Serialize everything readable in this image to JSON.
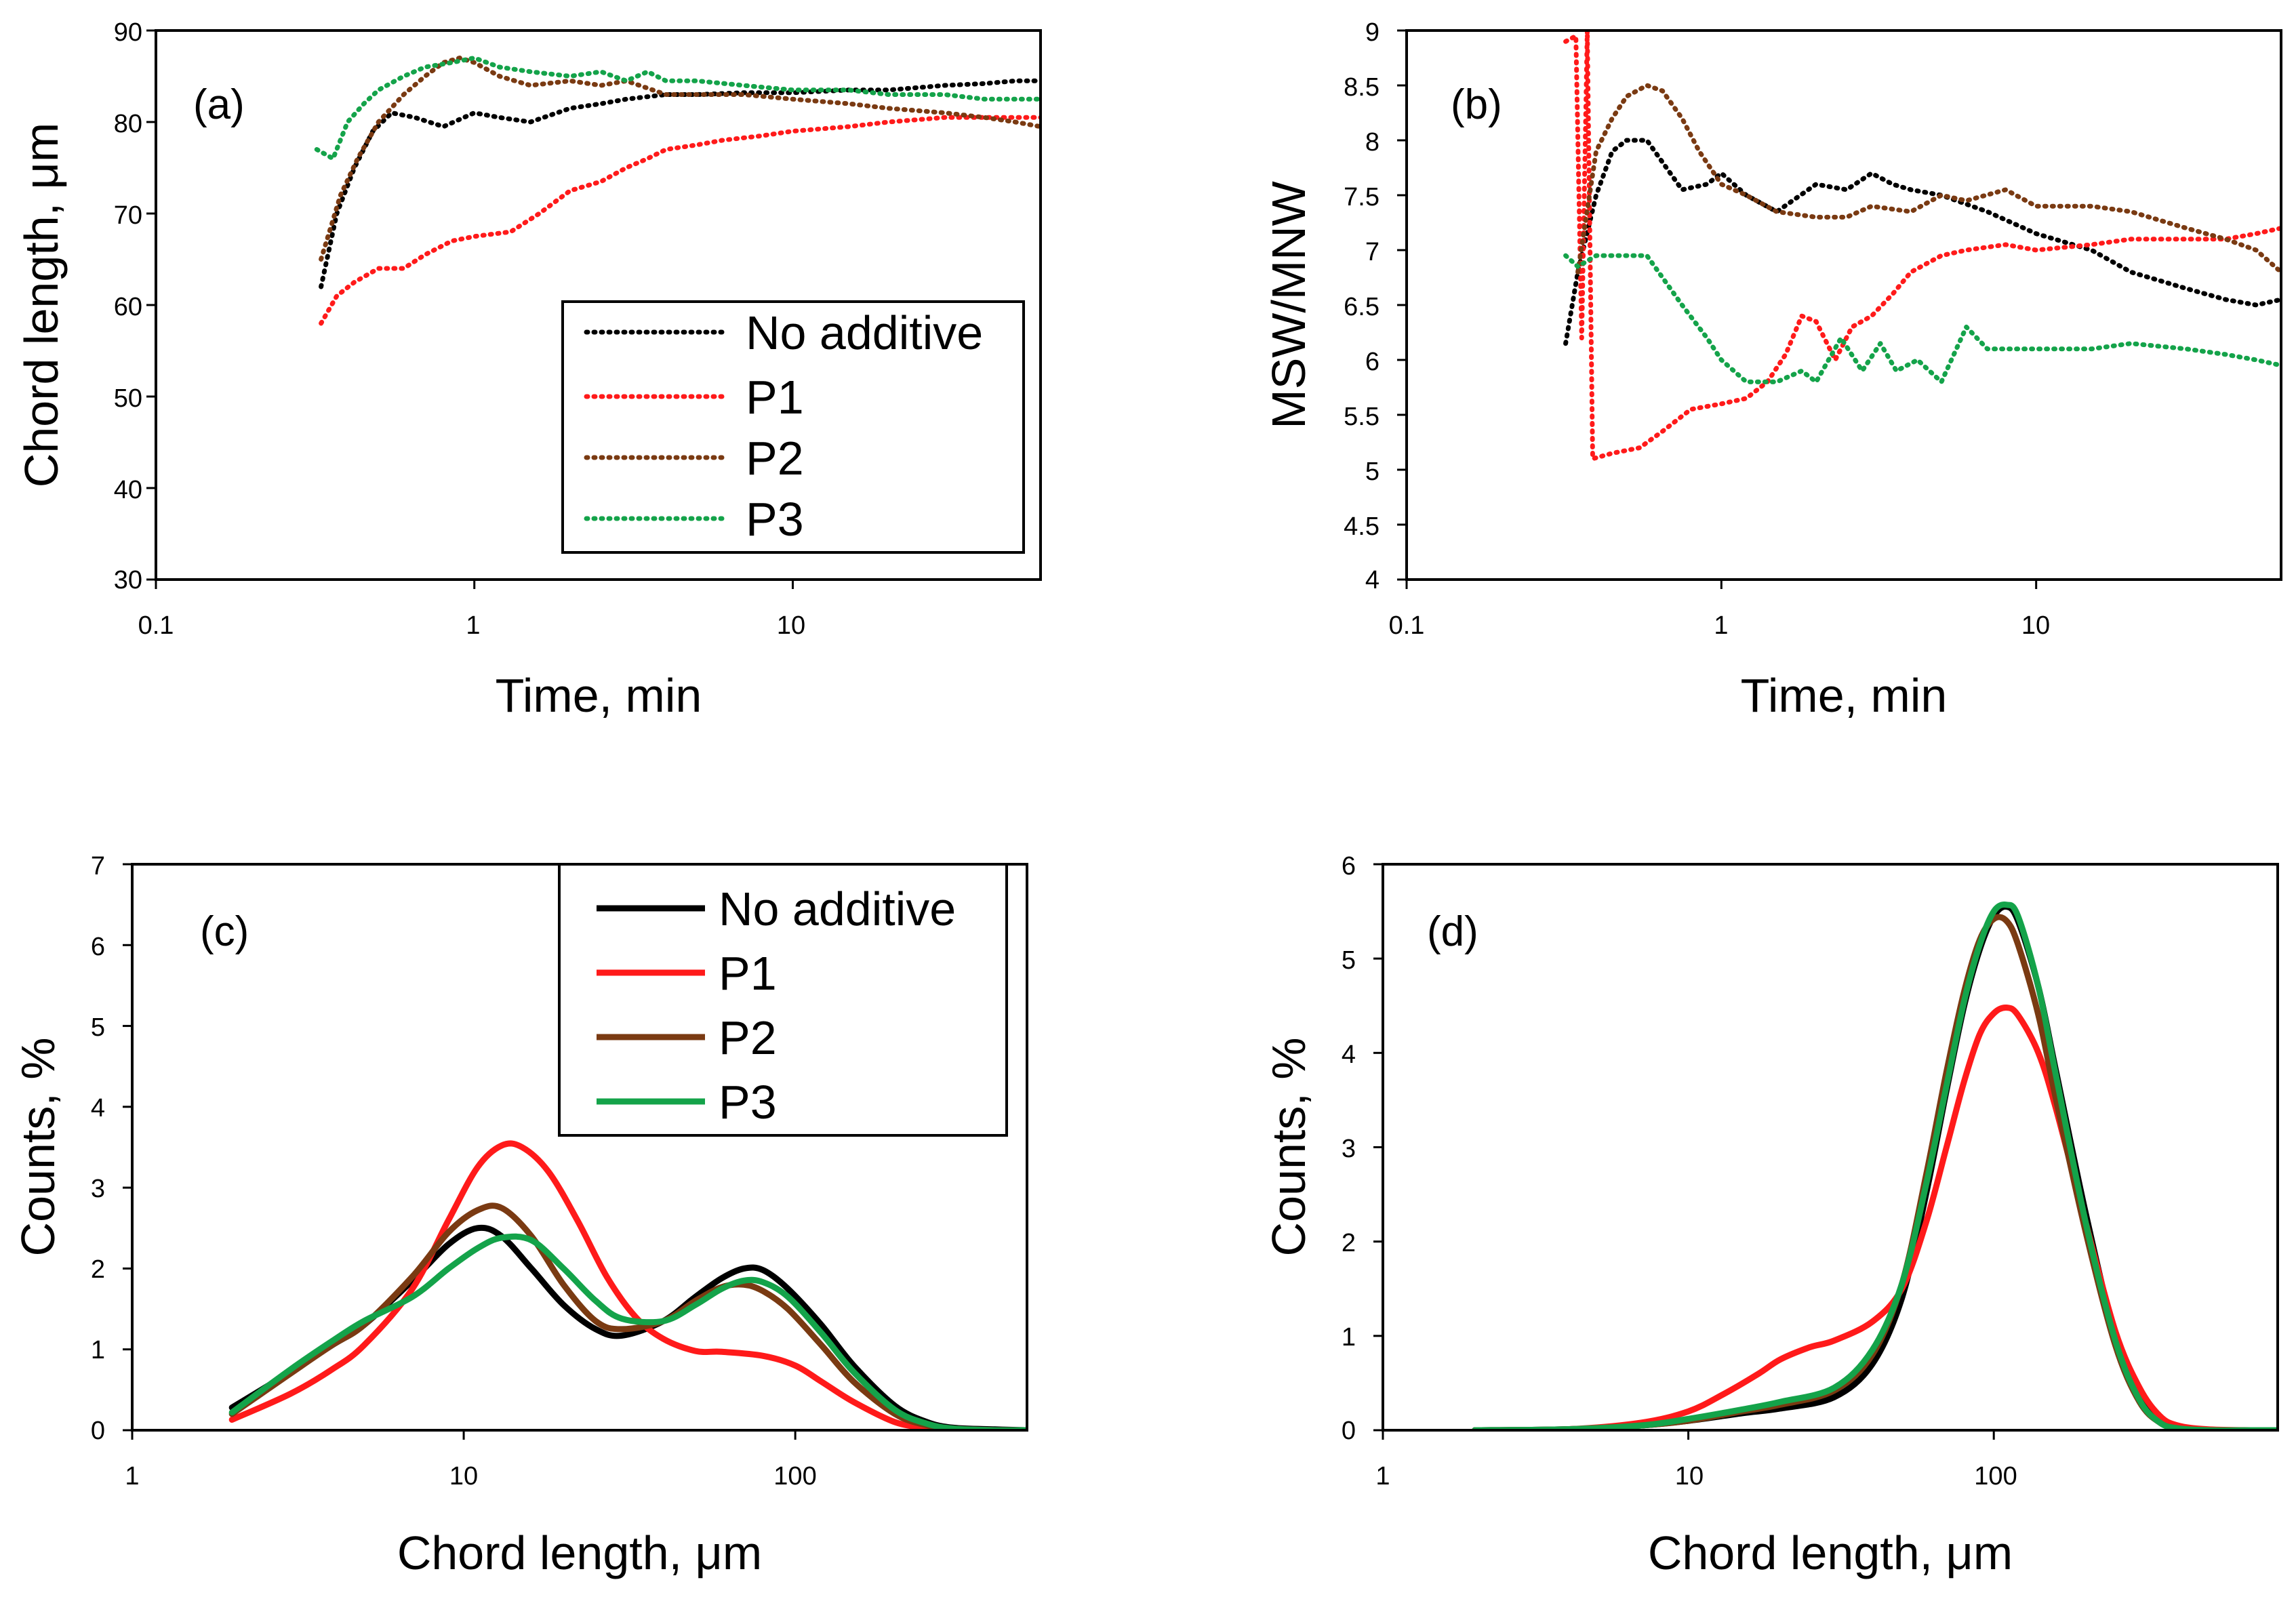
{
  "figure": {
    "colors": {
      "no_additive": "#000000",
      "P1": "#ff1a1a",
      "P2": "#7a3a12",
      "P3": "#14a34a"
    }
  },
  "chart_data": [
    {
      "type": "line",
      "panel_label": "(a)",
      "line_style": "dotted",
      "xscale": "log",
      "xlabel": "Time, min",
      "ylabel": "Chord length, μm",
      "xlim": [
        0.1,
        60
      ],
      "ylim": [
        30,
        90
      ],
      "x_tick_labels": [
        "0.1",
        "1",
        "10"
      ],
      "y_tick_labels": [
        "30",
        "40",
        "50",
        "60",
        "70",
        "80",
        "90"
      ],
      "legend_position": "lower-right",
      "series": [
        {
          "name": "No additive",
          "color_key": "no_additive",
          "x": [
            0.33,
            0.37,
            0.42,
            0.48,
            0.55,
            0.65,
            0.8,
            1.0,
            1.2,
            1.5,
            2.0,
            2.5,
            3.0,
            4.0,
            5.0,
            7.0,
            10,
            15,
            20,
            30,
            40,
            50,
            60
          ],
          "y": [
            62,
            70,
            75,
            79,
            81,
            80.5,
            79.5,
            81,
            80.5,
            80,
            81.5,
            82,
            82.5,
            83,
            83,
            83.2,
            83.2,
            83.5,
            83.5,
            84,
            84.2,
            84.5,
            84.5
          ]
        },
        {
          "name": "P1",
          "color_key": "P1",
          "x": [
            0.33,
            0.37,
            0.42,
            0.5,
            0.6,
            0.7,
            0.85,
            1.0,
            1.3,
            1.6,
            2.0,
            2.5,
            3.0,
            3.5,
            4.0,
            5.0,
            6.0,
            8.0,
            10,
            15,
            20,
            30,
            40,
            50,
            60
          ],
          "y": [
            58,
            61,
            62.5,
            64,
            64,
            65.5,
            67,
            67.5,
            68,
            70,
            72.5,
            73.5,
            75,
            76,
            77,
            77.5,
            78,
            78.5,
            79,
            79.5,
            80,
            80.5,
            80.5,
            80.5,
            80.5
          ]
        },
        {
          "name": "P2",
          "color_key": "P2",
          "x": [
            0.33,
            0.38,
            0.43,
            0.5,
            0.6,
            0.7,
            0.8,
            0.9,
            1.0,
            1.2,
            1.5,
            2.0,
            2.5,
            3.0,
            4.0,
            5.0,
            7.0,
            10,
            15,
            20,
            30,
            40,
            50,
            60
          ],
          "y": [
            65,
            72,
            76,
            80,
            83,
            85,
            86.5,
            87,
            86.5,
            85,
            84,
            84.5,
            84,
            84.5,
            83,
            83,
            83,
            82.5,
            82,
            81.5,
            81,
            80.5,
            80,
            79.5
          ]
        },
        {
          "name": "P3",
          "color_key": "P3",
          "x": [
            0.32,
            0.36,
            0.4,
            0.45,
            0.5,
            0.6,
            0.7,
            0.85,
            1.0,
            1.2,
            1.5,
            2.0,
            2.5,
            3.0,
            3.5,
            4.0,
            5.0,
            7.0,
            10,
            15,
            20,
            30,
            40,
            50,
            60
          ],
          "y": [
            77,
            76,
            80,
            82,
            83.5,
            85,
            86,
            86.5,
            87,
            86,
            85.5,
            85,
            85.5,
            84.5,
            85.5,
            84.5,
            84.5,
            84,
            83.5,
            83.5,
            83,
            83,
            82.5,
            82.5,
            82.5
          ]
        }
      ]
    },
    {
      "type": "line",
      "panel_label": "(b)",
      "line_style": "dotted",
      "xscale": "log",
      "xlabel": "Time, min",
      "ylabel": "MSW/MNW",
      "xlim": [
        0.1,
        60
      ],
      "ylim": [
        4,
        9
      ],
      "x_tick_labels": [
        "0.1",
        "1",
        "10"
      ],
      "y_tick_labels": [
        "4",
        "4.5",
        "5",
        "5.5",
        "6",
        "6.5",
        "7",
        "7.5",
        "8",
        "8.5",
        "9"
      ],
      "series": [
        {
          "name": "No additive",
          "color_key": "no_additive",
          "x": [
            0.32,
            0.35,
            0.4,
            0.45,
            0.5,
            0.58,
            0.65,
            0.75,
            0.9,
            1.0,
            1.2,
            1.5,
            2.0,
            2.5,
            3.0,
            3.5,
            4.0,
            5.0,
            7.0,
            10,
            15,
            20,
            30,
            40,
            50,
            60
          ],
          "y": [
            6.15,
            6.8,
            7.5,
            7.9,
            8.0,
            8.0,
            7.8,
            7.55,
            7.6,
            7.7,
            7.5,
            7.35,
            7.6,
            7.55,
            7.7,
            7.6,
            7.55,
            7.5,
            7.35,
            7.15,
            7.0,
            6.8,
            6.65,
            6.55,
            6.5,
            6.55
          ]
        },
        {
          "name": "P1",
          "color_key": "P1",
          "x": [
            0.32,
            0.345,
            0.36,
            0.375,
            0.39,
            0.45,
            0.55,
            0.65,
            0.8,
            1.0,
            1.2,
            1.4,
            1.6,
            1.8,
            2.0,
            2.3,
            2.6,
            3.0,
            3.5,
            4.0,
            5.0,
            6.0,
            8.0,
            10,
            15,
            20,
            30,
            40,
            50,
            60
          ],
          "y": [
            8.9,
            8.95,
            6.2,
            9.0,
            5.1,
            5.15,
            5.2,
            5.35,
            5.55,
            5.6,
            5.65,
            5.8,
            6.05,
            6.4,
            6.35,
            6.0,
            6.3,
            6.4,
            6.6,
            6.8,
            6.95,
            7.0,
            7.05,
            7.0,
            7.05,
            7.1,
            7.1,
            7.1,
            7.15,
            7.2
          ]
        },
        {
          "name": "P2",
          "color_key": "P2",
          "x": [
            0.35,
            0.4,
            0.45,
            0.5,
            0.58,
            0.65,
            0.75,
            0.85,
            1.0,
            1.2,
            1.5,
            2.0,
            2.5,
            3.0,
            4.0,
            5.0,
            6.0,
            8.0,
            10,
            15,
            20,
            30,
            40,
            50,
            60
          ],
          "y": [
            6.8,
            7.9,
            8.2,
            8.4,
            8.5,
            8.45,
            8.2,
            7.9,
            7.6,
            7.5,
            7.35,
            7.3,
            7.3,
            7.4,
            7.35,
            7.5,
            7.45,
            7.55,
            7.4,
            7.4,
            7.35,
            7.2,
            7.1,
            7.0,
            6.8
          ]
        },
        {
          "name": "P3",
          "color_key": "P3",
          "x": [
            0.32,
            0.35,
            0.4,
            0.45,
            0.5,
            0.58,
            0.65,
            0.75,
            0.9,
            1.0,
            1.2,
            1.5,
            1.8,
            2.0,
            2.4,
            2.8,
            3.2,
            3.6,
            4.2,
            5.0,
            6.0,
            7.0,
            10,
            15,
            20,
            30,
            40,
            50,
            60
          ],
          "y": [
            6.95,
            6.85,
            6.95,
            6.95,
            6.95,
            6.95,
            6.75,
            6.5,
            6.2,
            6.0,
            5.8,
            5.8,
            5.9,
            5.8,
            6.2,
            5.9,
            6.15,
            5.9,
            6.0,
            5.8,
            6.3,
            6.1,
            6.1,
            6.1,
            6.15,
            6.1,
            6.05,
            6.0,
            5.95
          ]
        }
      ]
    },
    {
      "type": "line",
      "panel_label": "(c)",
      "line_style": "solid",
      "xscale": "log",
      "xlabel": "Chord length, μm",
      "ylabel": "Counts, %",
      "xlim": [
        1,
        500
      ],
      "ylim": [
        0,
        7
      ],
      "x_tick_labels": [
        "1",
        "10",
        "100"
      ],
      "y_tick_labels": [
        "0",
        "1",
        "2",
        "3",
        "4",
        "5",
        "6",
        "7"
      ],
      "legend_position": "upper-right",
      "series": [
        {
          "name": "No additive",
          "color_key": "no_additive",
          "x": [
            2,
            3,
            4,
            5,
            7,
            9,
            11,
            13,
            16,
            20,
            25,
            30,
            40,
            50,
            60,
            70,
            80,
            95,
            120,
            150,
            200,
            250,
            300,
            400,
            500
          ],
          "y": [
            0.28,
            0.72,
            1.05,
            1.3,
            1.85,
            2.3,
            2.5,
            2.4,
            2.0,
            1.55,
            1.25,
            1.17,
            1.35,
            1.65,
            1.88,
            2.0,
            1.98,
            1.75,
            1.3,
            0.8,
            0.3,
            0.1,
            0.03,
            0.01,
            0
          ]
        },
        {
          "name": "P1",
          "color_key": "P1",
          "x": [
            2,
            3,
            4,
            5,
            7,
            9,
            11,
            13,
            15,
            18,
            22,
            27,
            33,
            40,
            50,
            60,
            80,
            100,
            120,
            150,
            200,
            250,
            300,
            400,
            500
          ],
          "y": [
            0.13,
            0.45,
            0.75,
            1.05,
            1.75,
            2.6,
            3.25,
            3.52,
            3.5,
            3.2,
            2.6,
            1.9,
            1.4,
            1.13,
            0.98,
            0.97,
            0.92,
            0.8,
            0.6,
            0.35,
            0.1,
            0.03,
            0.01,
            0,
            0
          ]
        },
        {
          "name": "P2",
          "color_key": "P2",
          "x": [
            2,
            3,
            4,
            5,
            7,
            9,
            11,
            13,
            16,
            20,
            25,
            30,
            40,
            50,
            60,
            70,
            80,
            95,
            120,
            150,
            200,
            250,
            300,
            400,
            500
          ],
          "y": [
            0.2,
            0.7,
            1.05,
            1.3,
            1.9,
            2.45,
            2.72,
            2.75,
            2.4,
            1.8,
            1.35,
            1.25,
            1.35,
            1.6,
            1.77,
            1.8,
            1.72,
            1.5,
            1.05,
            0.6,
            0.2,
            0.06,
            0.02,
            0,
            0
          ]
        },
        {
          "name": "P3",
          "color_key": "P3",
          "x": [
            2,
            3,
            4,
            5,
            7,
            9,
            11,
            13,
            16,
            20,
            25,
            30,
            40,
            50,
            60,
            70,
            80,
            95,
            120,
            150,
            200,
            250,
            300,
            400,
            500
          ],
          "y": [
            0.22,
            0.75,
            1.1,
            1.35,
            1.65,
            2.0,
            2.25,
            2.38,
            2.35,
            2.0,
            1.6,
            1.38,
            1.35,
            1.55,
            1.75,
            1.85,
            1.83,
            1.65,
            1.2,
            0.72,
            0.25,
            0.08,
            0.02,
            0,
            0
          ]
        }
      ]
    },
    {
      "type": "line",
      "panel_label": "(d)",
      "line_style": "solid",
      "xscale": "log",
      "xlabel": "Chord length, μm",
      "ylabel": "Counts, %",
      "xlim": [
        1,
        850
      ],
      "ylim": [
        0,
        6
      ],
      "x_tick_labels": [
        "1",
        "10",
        "100"
      ],
      "y_tick_labels": [
        "0",
        "1",
        "2",
        "3",
        "4",
        "5",
        "6"
      ],
      "series": [
        {
          "name": "No additive",
          "color_key": "no_additive",
          "x": [
            2,
            4,
            7,
            10,
            15,
            20,
            30,
            40,
            50,
            60,
            70,
            80,
            90,
            100,
            110,
            120,
            140,
            160,
            200,
            250,
            300,
            350,
            400,
            500,
            700,
            850
          ],
          "y": [
            0,
            0.01,
            0.05,
            0.1,
            0.18,
            0.23,
            0.35,
            0.7,
            1.4,
            2.5,
            3.6,
            4.5,
            5.1,
            5.45,
            5.55,
            5.4,
            4.7,
            3.8,
            2.3,
            1.0,
            0.4,
            0.12,
            0.03,
            0,
            0,
            0
          ]
        },
        {
          "name": "P1",
          "color_key": "P1",
          "x": [
            2,
            4,
            7,
            10,
            13,
            17,
            20,
            25,
            30,
            40,
            50,
            60,
            70,
            80,
            90,
            100,
            110,
            120,
            140,
            160,
            200,
            250,
            300,
            350,
            400,
            500,
            700,
            850
          ],
          "y": [
            0,
            0.01,
            0.08,
            0.2,
            0.38,
            0.6,
            0.75,
            0.88,
            0.95,
            1.15,
            1.5,
            2.2,
            3.0,
            3.7,
            4.2,
            4.42,
            4.48,
            4.4,
            4.0,
            3.4,
            2.2,
            1.05,
            0.45,
            0.15,
            0.05,
            0.01,
            0,
            0
          ]
        },
        {
          "name": "P2",
          "color_key": "P2",
          "x": [
            2,
            4,
            7,
            10,
            15,
            20,
            30,
            40,
            50,
            60,
            70,
            80,
            90,
            100,
            110,
            120,
            140,
            160,
            200,
            250,
            300,
            350,
            400,
            500,
            700,
            850
          ],
          "y": [
            0,
            0.01,
            0.05,
            0.1,
            0.2,
            0.27,
            0.42,
            0.8,
            1.55,
            2.7,
            3.8,
            4.65,
            5.2,
            5.42,
            5.4,
            5.15,
            4.4,
            3.5,
            2.1,
            0.9,
            0.3,
            0.08,
            0.02,
            0,
            0,
            0
          ]
        },
        {
          "name": "P3",
          "color_key": "P3",
          "x": [
            2,
            4,
            7,
            10,
            15,
            20,
            30,
            40,
            50,
            60,
            70,
            80,
            90,
            100,
            110,
            120,
            140,
            160,
            200,
            250,
            300,
            350,
            400,
            500,
            700,
            850
          ],
          "y": [
            0,
            0.01,
            0.05,
            0.12,
            0.22,
            0.3,
            0.45,
            0.85,
            1.55,
            2.6,
            3.65,
            4.55,
            5.15,
            5.5,
            5.57,
            5.45,
            4.7,
            3.75,
            2.2,
            0.95,
            0.32,
            0.08,
            0.02,
            0,
            0,
            0
          ]
        }
      ]
    }
  ],
  "legends": {
    "top": {
      "entries": [
        "No additive",
        "P1",
        "P2",
        "P3"
      ]
    },
    "bottom": {
      "entries": [
        "No additive",
        "P1",
        "P2",
        "P3"
      ]
    }
  }
}
